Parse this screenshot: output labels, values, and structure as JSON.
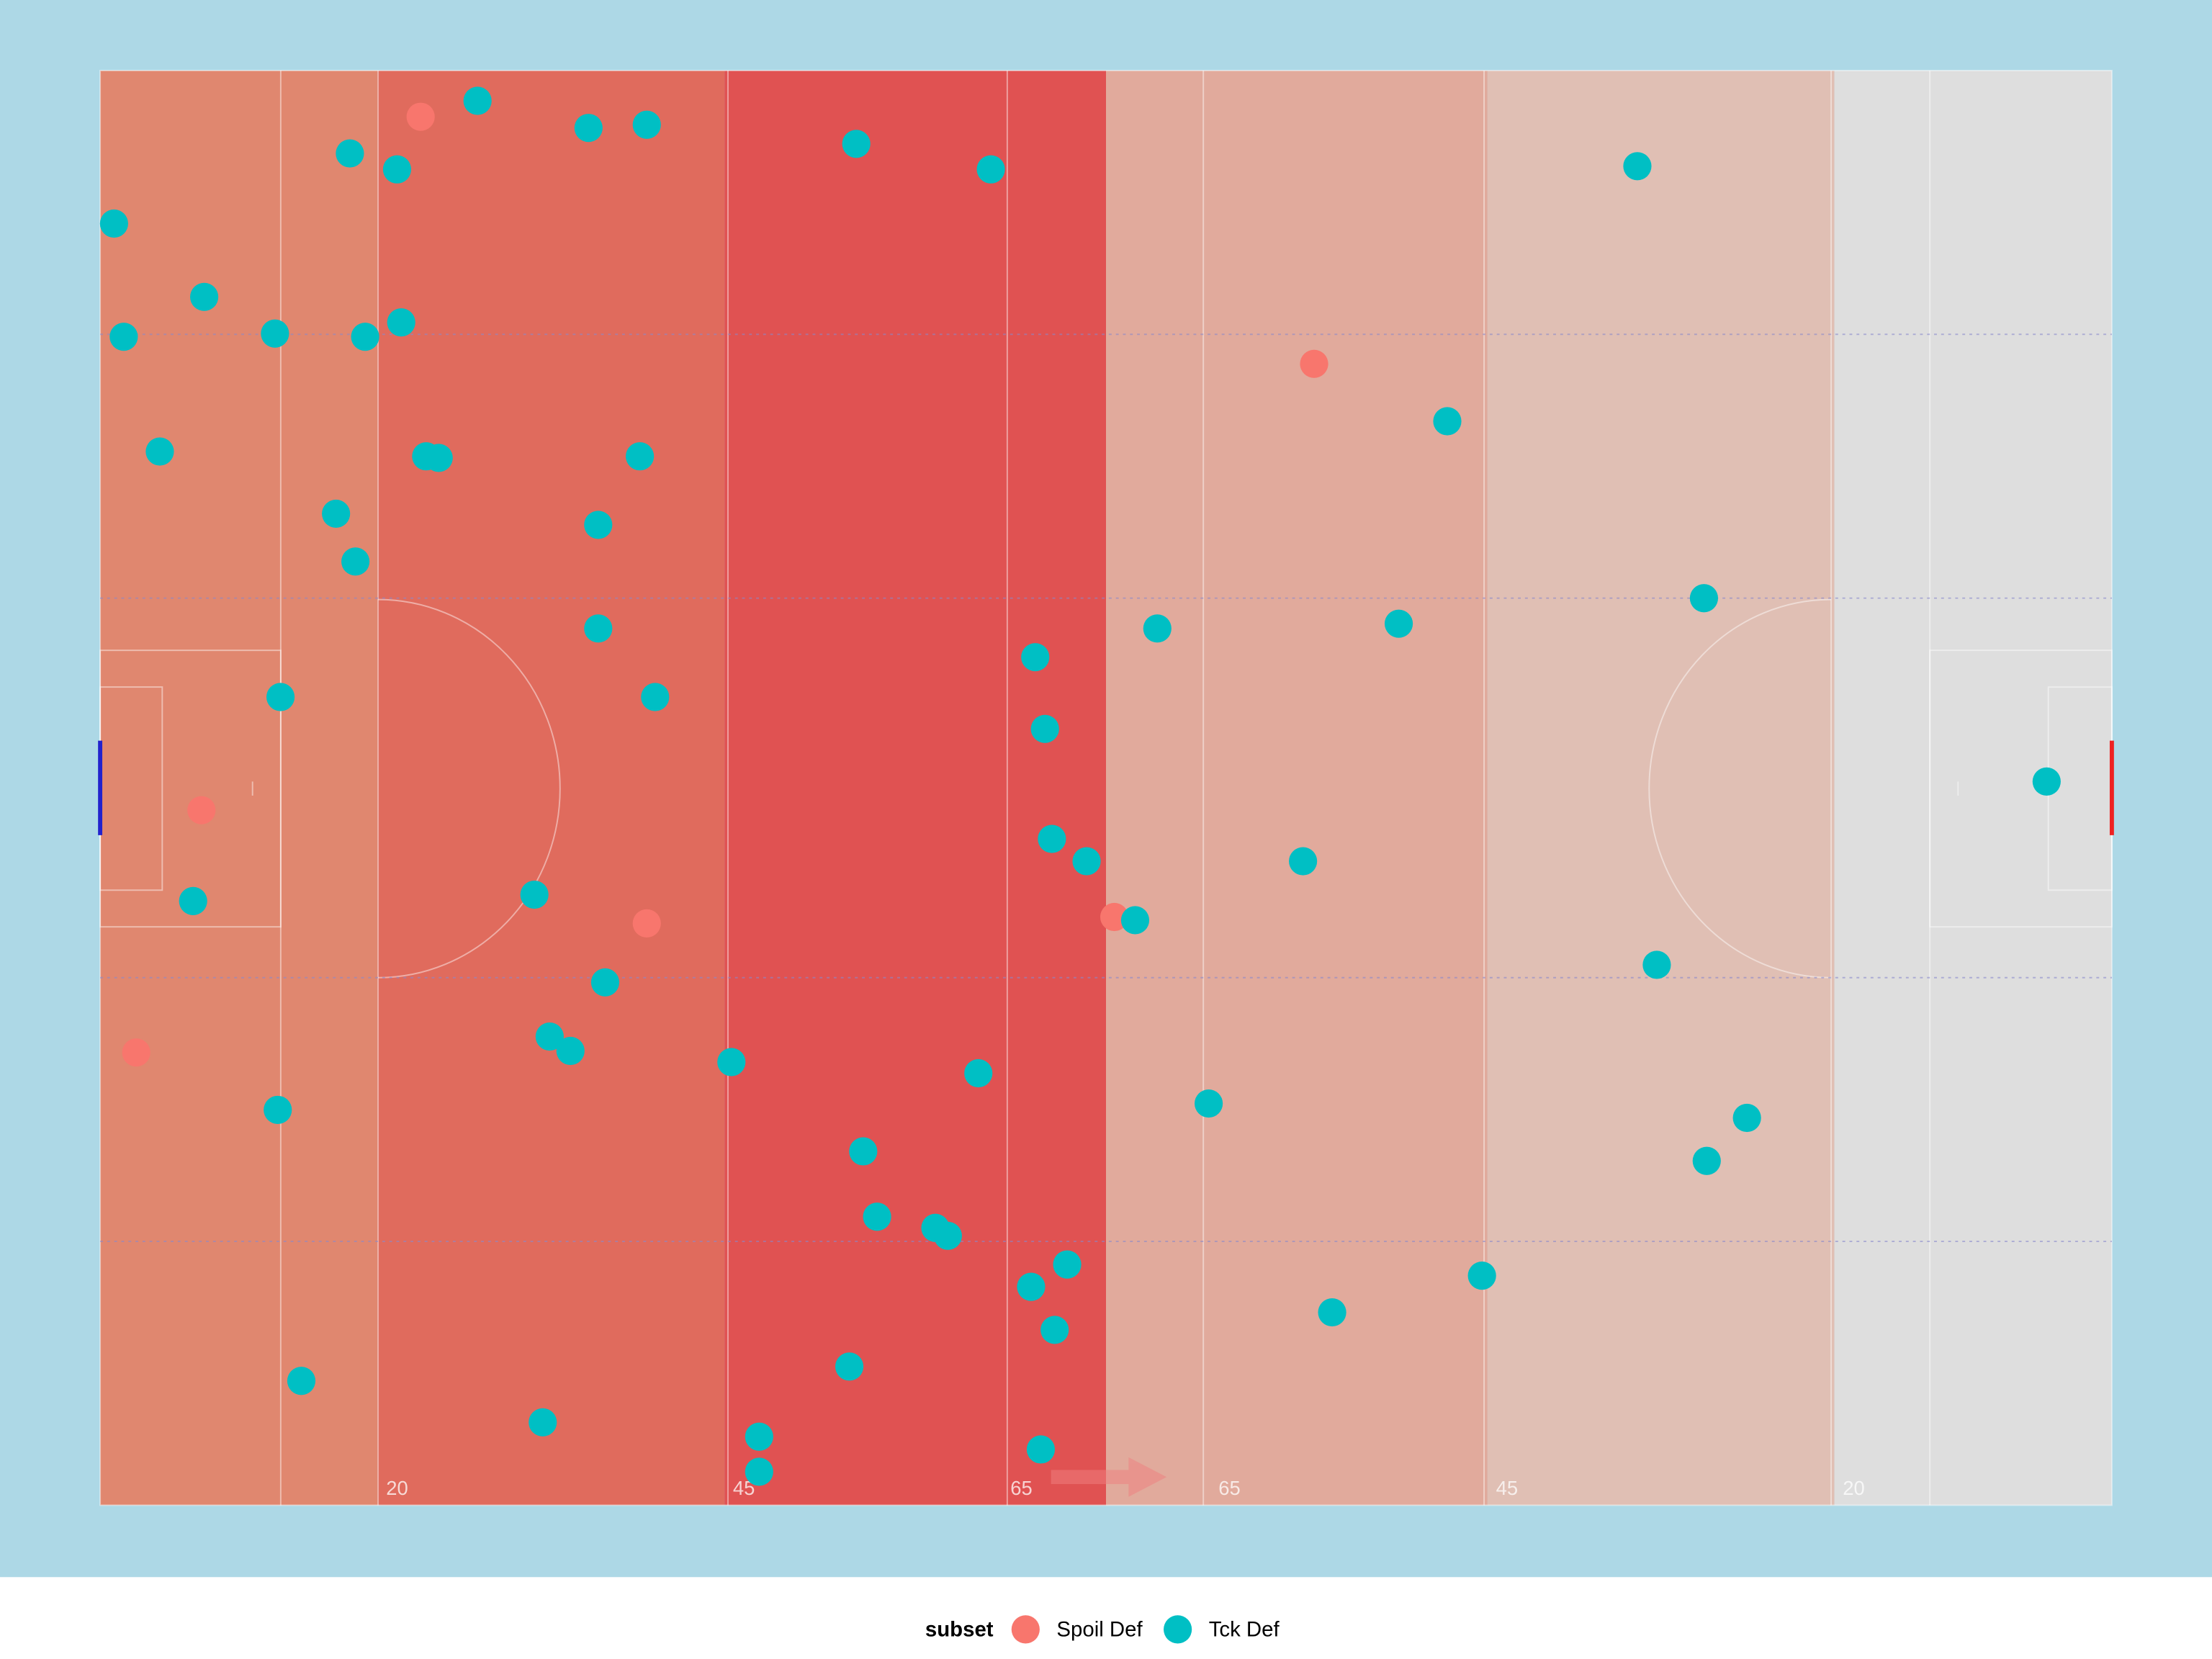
{
  "chart_data": {
    "type": "scatter",
    "xlim": [
      0,
      145
    ],
    "ylim": [
      0,
      90
    ],
    "xticks": [
      20,
      45,
      65,
      {
        "value": 80,
        "label": "65"
      },
      {
        "value": 100,
        "label": "45"
      },
      {
        "value": 125,
        "label": "20"
      }
    ],
    "zones": [
      {
        "xlim": [
          0,
          20
        ],
        "color": "#e0876f"
      },
      {
        "xlim": [
          20,
          45
        ],
        "color": "#e06b5d"
      },
      {
        "xlim": [
          45,
          72.5
        ],
        "color": "#e05252"
      },
      {
        "xlim": [
          72.5,
          100
        ],
        "color": "#e1aa9c"
      },
      {
        "xlim": [
          100,
          125
        ],
        "color": "#e0bfb4"
      },
      {
        "xlim": [
          125,
          145
        ],
        "color": "#dedede"
      }
    ],
    "legend_title": "subset",
    "series": [
      {
        "name": "Spoil Def",
        "color": "#f8766d",
        "x": [
          23.1,
          7.3,
          2.6,
          87.5,
          39.4,
          73.1
        ],
        "values": [
          87.1,
          43.6,
          28.4,
          71.6,
          36.5,
          36.9
        ]
      },
      {
        "name": "Tck Def",
        "color": "#00bfc4",
        "x": [
          27.2,
          35.2,
          39.4,
          18.0,
          21.4,
          54.5,
          64.2,
          110.8,
          1.0,
          7.5,
          1.7,
          12.6,
          19.1,
          21.7,
          4.3,
          23.5,
          24.4,
          38.9,
          97.1,
          17.0,
          18.4,
          35.9,
          35.9,
          76.2,
          93.6,
          115.6,
          67.4,
          13.0,
          40.0,
          68.1,
          140.3,
          68.6,
          71.1,
          86.7,
          6.7,
          31.3,
          74.6,
          112.2,
          36.4,
          32.4,
          33.9,
          45.5,
          63.3,
          79.9,
          12.8,
          118.7,
          115.8,
          55.0,
          56.0,
          60.2,
          61.1,
          69.7,
          67.1,
          99.6,
          88.8,
          68.8,
          54.0,
          14.5,
          31.9,
          47.5,
          47.5,
          67.8
        ],
        "values": [
          88.1,
          86.4,
          86.6,
          84.8,
          83.8,
          85.4,
          83.8,
          84.0,
          80.4,
          75.8,
          73.3,
          73.5,
          73.3,
          74.2,
          66.1,
          65.8,
          65.7,
          65.8,
          68.0,
          62.2,
          59.2,
          61.5,
          55.0,
          55.0,
          55.3,
          56.9,
          53.2,
          50.7,
          50.7,
          48.7,
          45.4,
          41.8,
          40.4,
          40.4,
          37.9,
          38.3,
          36.7,
          33.9,
          32.8,
          29.4,
          28.5,
          27.8,
          27.1,
          25.2,
          24.8,
          24.3,
          21.6,
          22.2,
          18.1,
          17.4,
          16.9,
          15.1,
          13.7,
          14.4,
          12.1,
          11.0,
          8.7,
          7.8,
          5.2,
          4.3,
          2.1,
          3.5
        ]
      }
    ]
  }
}
